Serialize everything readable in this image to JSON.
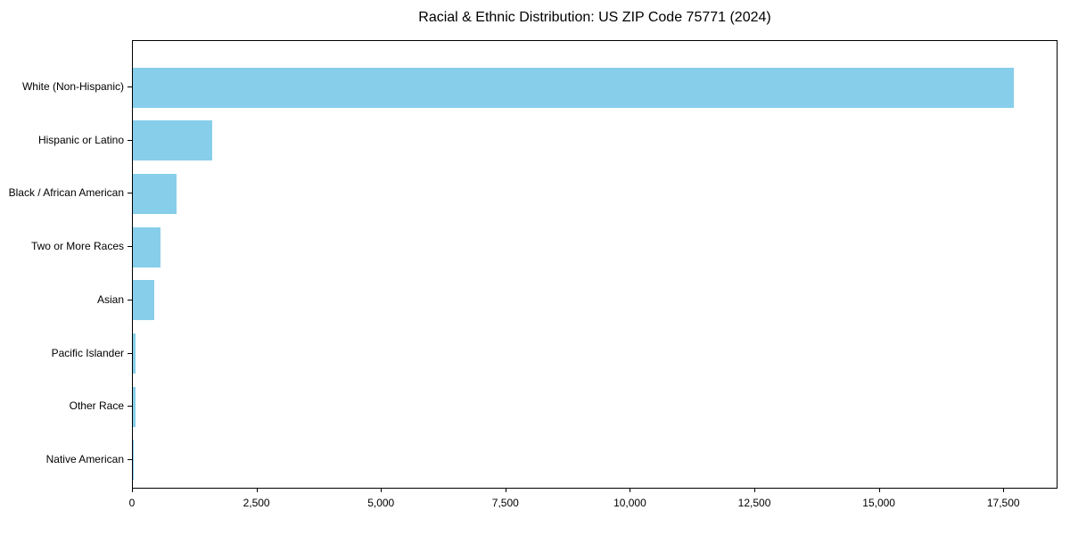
{
  "title": "Racial & Ethnic Distribution: US ZIP Code 75771 (2024)",
  "chart_data": {
    "type": "bar",
    "orientation": "horizontal",
    "title": "Racial & Ethnic Distribution: US ZIP Code 75771 (2024)",
    "xlabel": "",
    "ylabel": "",
    "grid": false,
    "legend_position": "none",
    "bar_color": "#87CEEB",
    "spine_color": "#000000",
    "background_color": "#ffffff",
    "categories": [
      "White (Non-Hispanic)",
      "Hispanic or Latino",
      "Black / African American",
      "Two or More Races",
      "Asian",
      "Pacific Islander",
      "Other Race",
      "Native American"
    ],
    "values": [
      17690,
      1590,
      870,
      550,
      430,
      55,
      60,
      10
    ],
    "x_ticks": [
      0,
      2500,
      5000,
      7500,
      10000,
      12500,
      15000,
      17500
    ],
    "x_tick_labels": [
      "0",
      "2,500",
      "5,000",
      "7,500",
      "10,000",
      "12,500",
      "15,000",
      "17,500"
    ],
    "xlim": [
      0,
      18570
    ]
  }
}
